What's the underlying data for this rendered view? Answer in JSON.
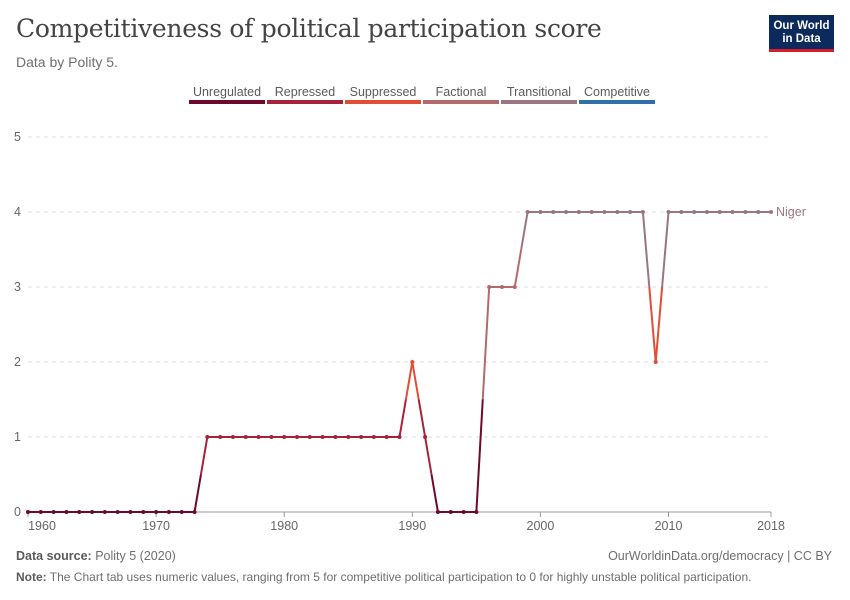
{
  "header": {
    "title": "Competitiveness of political participation score",
    "subtitle": "Data by Polity 5.",
    "logo_line1": "Our World",
    "logo_line2": "in Data"
  },
  "footer": {
    "source_label": "Data source:",
    "source_value": "Polity 5 (2020)",
    "url": "OurWorldinData.org/democracy | CC BY",
    "note_label": "Note:",
    "note_value": "The Chart tab uses numeric values, ranging from 5 for competitive political participation to 0 for highly unstable political participation."
  },
  "chart_data": {
    "type": "line",
    "xlim": [
      1960,
      2018
    ],
    "ylim": [
      0,
      5
    ],
    "x_ticks": [
      1960,
      1970,
      1980,
      1990,
      2000,
      2010,
      2018
    ],
    "y_ticks": [
      0,
      1,
      2,
      3,
      4,
      5
    ],
    "grid": "horizontal dashed",
    "legend_position": "top",
    "legend": [
      {
        "label": "Unregulated",
        "color": "#6d0a2a"
      },
      {
        "label": "Repressed",
        "color": "#a8213a"
      },
      {
        "label": "Suppressed",
        "color": "#e04e35"
      },
      {
        "label": "Factional",
        "color": "#b46a6c"
      },
      {
        "label": "Transitional",
        "color": "#9a7582"
      },
      {
        "label": "Competitive",
        "color": "#2e6fab"
      }
    ],
    "series": [
      {
        "name": "Niger",
        "x": [
          1960,
          1961,
          1962,
          1963,
          1964,
          1965,
          1966,
          1967,
          1968,
          1969,
          1970,
          1971,
          1972,
          1973,
          1974,
          1975,
          1976,
          1977,
          1978,
          1979,
          1980,
          1981,
          1982,
          1983,
          1984,
          1985,
          1986,
          1987,
          1988,
          1989,
          1990,
          1991,
          1992,
          1993,
          1994,
          1995,
          1996,
          1997,
          1998,
          1999,
          2000,
          2001,
          2002,
          2003,
          2004,
          2005,
          2006,
          2007,
          2008,
          2009,
          2010,
          2011,
          2012,
          2013,
          2014,
          2015,
          2016,
          2017,
          2018
        ],
        "y": [
          0,
          0,
          0,
          0,
          0,
          0,
          0,
          0,
          0,
          0,
          0,
          0,
          0,
          0,
          1,
          1,
          1,
          1,
          1,
          1,
          1,
          1,
          1,
          1,
          1,
          1,
          1,
          1,
          1,
          1,
          2,
          1,
          0,
          0,
          0,
          0,
          3,
          3,
          3,
          4,
          4,
          4,
          4,
          4,
          4,
          4,
          4,
          4,
          4,
          2,
          4,
          4,
          4,
          4,
          4,
          4,
          4,
          4,
          4
        ]
      }
    ]
  }
}
